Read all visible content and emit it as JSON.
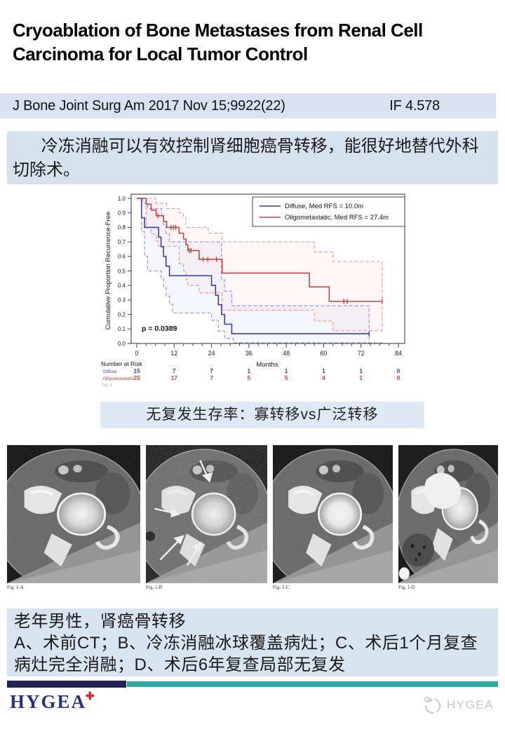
{
  "header": {
    "title": "Cryoablation of Bone Metastases from Renal Cell Carcinoma for Local Tumor Control"
  },
  "citation_bar": {
    "citation": "J Bone Joint Surg Am 2017 Nov 15;9922(22)",
    "impact_factor": "IF 4.578"
  },
  "summary_box": {
    "text": "冷冻消融可以有效控制肾细胞癌骨转移，能很好地替代外科切除术。"
  },
  "chart_caption": {
    "text": "无复发生存率：寡转移vs广泛转移"
  },
  "figure_strip": {
    "panels": [
      {
        "label": "Fig. 1-A"
      },
      {
        "label": "Fig. 1-B"
      },
      {
        "label": "Fig. 1-C"
      },
      {
        "label": "Fig. 1-D"
      }
    ]
  },
  "case_box": {
    "line1": "老年男性，肾癌骨转移",
    "line2": "A、术前CT；B、冷冻消融冰球覆盖病灶；C、术后1个月复查病灶完全消融；D、术后6年复查局部无复发"
  },
  "footer": {
    "logo_text": "HYGEA",
    "logo_plus": "✚",
    "watermark_text": "HYGEA",
    "colors": {
      "navy_bar": "#202457",
      "teal_bar": "#2ea79d",
      "logo_navy": "#2b3178",
      "logo_red": "#e32225",
      "watermark_gray": "#c5c5c5"
    }
  },
  "chart_data": {
    "type": "line",
    "subtype": "kaplan-meier-step",
    "title": "",
    "xlabel": "Months",
    "ylabel": "Cumulative Proportion Recurrence-Free",
    "xlim": [
      0,
      84
    ],
    "xticks": [
      0,
      12,
      24,
      36,
      48,
      60,
      72,
      84
    ],
    "x_minor_step": 3,
    "ylim": [
      0.0,
      1.0
    ],
    "ytick_step": 0.1,
    "grid": false,
    "legend_position": "top-right-inside",
    "p_value_label": "p = 0.0389",
    "fig_label": "Fig. 1",
    "series": [
      {
        "name": "Diffuse, Med RFS = 10.0m",
        "color": "#3c3cba",
        "ci_color": "#8f8fd9",
        "median_rfs_months": 10.0,
        "steps": [
          [
            0,
            1.0
          ],
          [
            1.5,
            0.867
          ],
          [
            2.5,
            0.8
          ],
          [
            7,
            0.733
          ],
          [
            7.8,
            0.667
          ],
          [
            8.6,
            0.6
          ],
          [
            9.4,
            0.533
          ],
          [
            10.5,
            0.467
          ],
          [
            24,
            0.4
          ],
          [
            25.3,
            0.333
          ],
          [
            26.2,
            0.267
          ],
          [
            27.2,
            0.2
          ],
          [
            28.2,
            0.133
          ],
          [
            30.5,
            0.067
          ],
          [
            74.6,
            0.067
          ]
        ],
        "censors": [
          [
            74.6,
            0.067
          ]
        ],
        "ci_upper": [
          [
            0,
            1.0
          ],
          [
            2,
            0.97
          ],
          [
            3.5,
            0.93
          ],
          [
            7,
            0.93
          ],
          [
            8,
            0.88
          ],
          [
            8.6,
            0.82
          ],
          [
            9.4,
            0.76
          ],
          [
            10.5,
            0.7
          ],
          [
            26.2,
            0.7
          ],
          [
            27.2,
            0.44
          ],
          [
            28.2,
            0.36
          ],
          [
            30.5,
            0.26
          ],
          [
            74.6,
            0.26
          ],
          [
            74.6,
            0.005
          ]
        ],
        "ci_lower": [
          [
            0,
            1.0
          ],
          [
            1.5,
            0.77
          ],
          [
            2.5,
            0.6
          ],
          [
            3.5,
            0.5
          ],
          [
            7,
            0.5
          ],
          [
            7.8,
            0.445
          ],
          [
            8.6,
            0.385
          ],
          [
            9.4,
            0.325
          ],
          [
            10.5,
            0.27
          ],
          [
            11.5,
            0.21
          ],
          [
            22,
            0.21
          ],
          [
            24,
            0.16
          ],
          [
            26.2,
            0.085
          ],
          [
            28.2,
            0.035
          ],
          [
            31,
            0.005
          ],
          [
            78.8,
            0.005
          ]
        ]
      },
      {
        "name": "Oligometastatic, Med RFS = 27.4m",
        "color": "#c64540",
        "ci_color": "#e09a96",
        "median_rfs_months": 27.4,
        "steps": [
          [
            0,
            1.0
          ],
          [
            3,
            0.96
          ],
          [
            4.6,
            0.92
          ],
          [
            6.2,
            0.88
          ],
          [
            8.6,
            0.84
          ],
          [
            9.6,
            0.8
          ],
          [
            13.6,
            0.76
          ],
          [
            15,
            0.72
          ],
          [
            15.8,
            0.68
          ],
          [
            16.4,
            0.64
          ],
          [
            20,
            0.58
          ],
          [
            27.4,
            0.485
          ],
          [
            55.4,
            0.39
          ],
          [
            61.8,
            0.29
          ],
          [
            78.8,
            0.29
          ]
        ],
        "censors": [
          [
            6.8,
            0.88
          ],
          [
            11,
            0.8
          ],
          [
            11.8,
            0.8
          ],
          [
            12.5,
            0.8
          ],
          [
            16.8,
            0.64
          ],
          [
            17.4,
            0.64
          ],
          [
            21.3,
            0.58
          ],
          [
            22.8,
            0.58
          ],
          [
            25.6,
            0.58
          ],
          [
            66.5,
            0.29
          ],
          [
            67.6,
            0.29
          ],
          [
            78.8,
            0.29
          ]
        ],
        "ci_upper": [
          [
            0,
            1.0
          ],
          [
            4.6,
            1.0
          ],
          [
            6.2,
            0.965
          ],
          [
            9.6,
            0.93
          ],
          [
            13.6,
            0.9
          ],
          [
            15,
            0.87
          ],
          [
            15.8,
            0.8
          ],
          [
            22,
            0.8
          ],
          [
            23,
            0.76
          ],
          [
            26,
            0.76
          ],
          [
            27.4,
            0.7
          ],
          [
            55.4,
            0.7
          ],
          [
            57,
            0.63
          ],
          [
            61.8,
            0.63
          ],
          [
            63,
            0.565
          ],
          [
            78.8,
            0.565
          ],
          [
            78.8,
            0.08
          ]
        ],
        "ci_lower": [
          [
            0,
            1.0
          ],
          [
            3,
            0.8
          ],
          [
            4.6,
            0.755
          ],
          [
            6.2,
            0.705
          ],
          [
            7,
            0.67
          ],
          [
            12.5,
            0.67
          ],
          [
            13.6,
            0.55
          ],
          [
            15,
            0.5
          ],
          [
            15.8,
            0.44
          ],
          [
            16.4,
            0.4
          ],
          [
            20,
            0.35
          ],
          [
            26,
            0.35
          ],
          [
            27.4,
            0.23
          ],
          [
            55.4,
            0.23
          ],
          [
            57,
            0.155
          ],
          [
            61.8,
            0.155
          ],
          [
            63,
            0.088
          ],
          [
            78.8,
            0.088
          ]
        ]
      }
    ],
    "risk_table": {
      "title": "Number at Risk",
      "time_points": [
        0,
        12,
        24,
        36,
        48,
        60,
        72,
        84
      ],
      "rows": [
        {
          "name": "Diffuse",
          "values": [
            15,
            7,
            7,
            1,
            1,
            1,
            1,
            0
          ]
        },
        {
          "name": "Oligometastatic",
          "values": [
            25,
            17,
            7,
            5,
            5,
            4,
            1,
            0
          ]
        }
      ]
    }
  }
}
